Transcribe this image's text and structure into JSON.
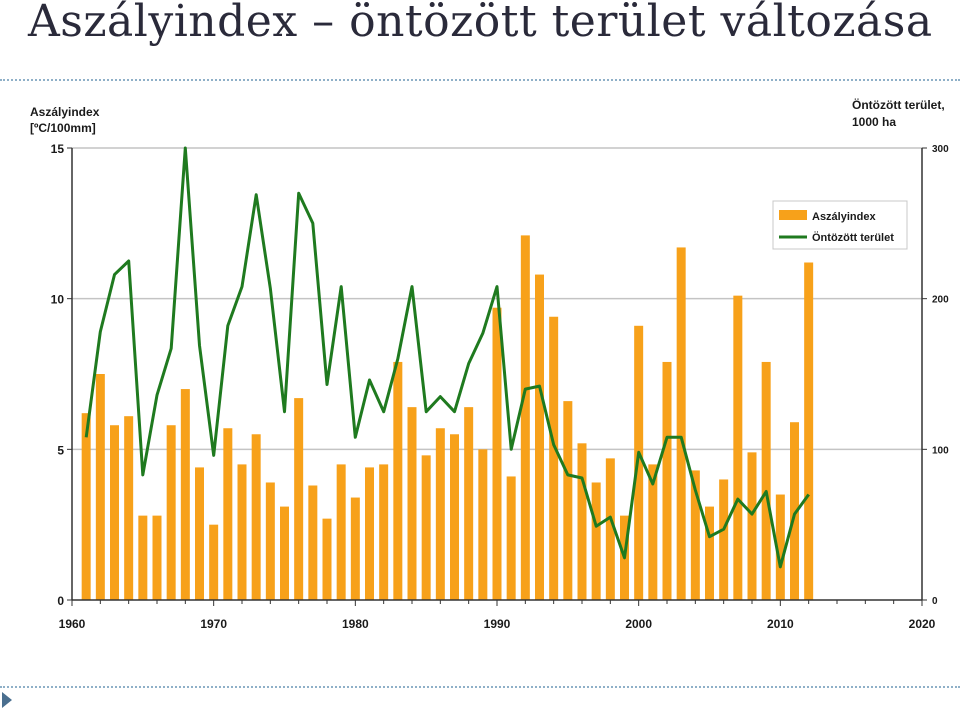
{
  "slide": {
    "title": "Aszályindex – öntözött terület változása"
  },
  "chart_data": {
    "type": "bar+line",
    "left_axis_label_line1": "Aszályindex",
    "left_axis_label_line2": "[ºC/100mm]",
    "right_axis_label_line1": "Öntözött terület,",
    "right_axis_label_line2": "1000 ha",
    "ylim_left": [
      0,
      15
    ],
    "ylim_right": [
      0,
      300
    ],
    "xlim": [
      1960,
      2020
    ],
    "left_ticks": [
      0,
      5,
      10,
      15
    ],
    "right_ticks": [
      0,
      100,
      200,
      300
    ],
    "x_ticks": [
      1960,
      1970,
      1980,
      1990,
      2000,
      2010,
      2020
    ],
    "grid": "horizontal",
    "legend_position": "top-right",
    "colors": {
      "bar": "#f7a11a",
      "line": "#1f7a1f"
    },
    "series": [
      {
        "name": "Aszályindex",
        "axis": "left",
        "style": "bar",
        "x": [
          1961,
          1962,
          1963,
          1964,
          1965,
          1966,
          1967,
          1968,
          1969,
          1970,
          1971,
          1972,
          1973,
          1974,
          1975,
          1976,
          1977,
          1978,
          1979,
          1980,
          1981,
          1982,
          1983,
          1984,
          1985,
          1986,
          1987,
          1988,
          1989,
          1990,
          1991,
          1992,
          1993,
          1994,
          1995,
          1996,
          1997,
          1998,
          1999,
          2000,
          2001,
          2002,
          2003,
          2004,
          2005,
          2006,
          2007,
          2008,
          2009,
          2010,
          2011,
          2012
        ],
        "values": [
          6.2,
          7.5,
          5.8,
          6.1,
          2.8,
          2.8,
          5.8,
          7.0,
          4.4,
          2.5,
          5.7,
          4.5,
          5.5,
          3.9,
          3.1,
          6.7,
          3.8,
          2.7,
          4.5,
          3.4,
          4.4,
          4.5,
          7.9,
          6.4,
          4.8,
          5.7,
          5.5,
          6.4,
          5.0,
          9.7,
          4.1,
          12.1,
          10.8,
          9.4,
          6.6,
          5.2,
          3.9,
          4.7,
          2.8,
          9.1,
          4.5,
          7.9,
          11.7,
          4.3,
          3.1,
          4.0,
          10.1,
          4.9,
          7.9,
          3.5,
          5.9,
          11.2
        ]
      },
      {
        "name": "Öntözött terület",
        "axis": "right",
        "style": "line",
        "x": [
          1961,
          1962,
          1963,
          1964,
          1965,
          1966,
          1967,
          1968,
          1969,
          1970,
          1971,
          1972,
          1973,
          1974,
          1975,
          1976,
          1977,
          1978,
          1979,
          1980,
          1981,
          1982,
          1983,
          1984,
          1985,
          1986,
          1987,
          1988,
          1989,
          1990,
          1991,
          1992,
          1993,
          1994,
          1995,
          1996,
          1997,
          1998,
          1999,
          2000,
          2001,
          2002,
          2003,
          2004,
          2005,
          2006,
          2007,
          2008,
          2009,
          2010,
          2011,
          2012
        ],
        "values": [
          108,
          178,
          216,
          225,
          83,
          136,
          167,
          300,
          169,
          96,
          182,
          208,
          269,
          207,
          125,
          270,
          250,
          143,
          208,
          108,
          146,
          125,
          160,
          208,
          125,
          135,
          125,
          157,
          177,
          208,
          100,
          140,
          142,
          103,
          83,
          81,
          49,
          55,
          28,
          98,
          77,
          108,
          108,
          73,
          42,
          47,
          67,
          57,
          72,
          22,
          57,
          70
        ]
      }
    ]
  }
}
